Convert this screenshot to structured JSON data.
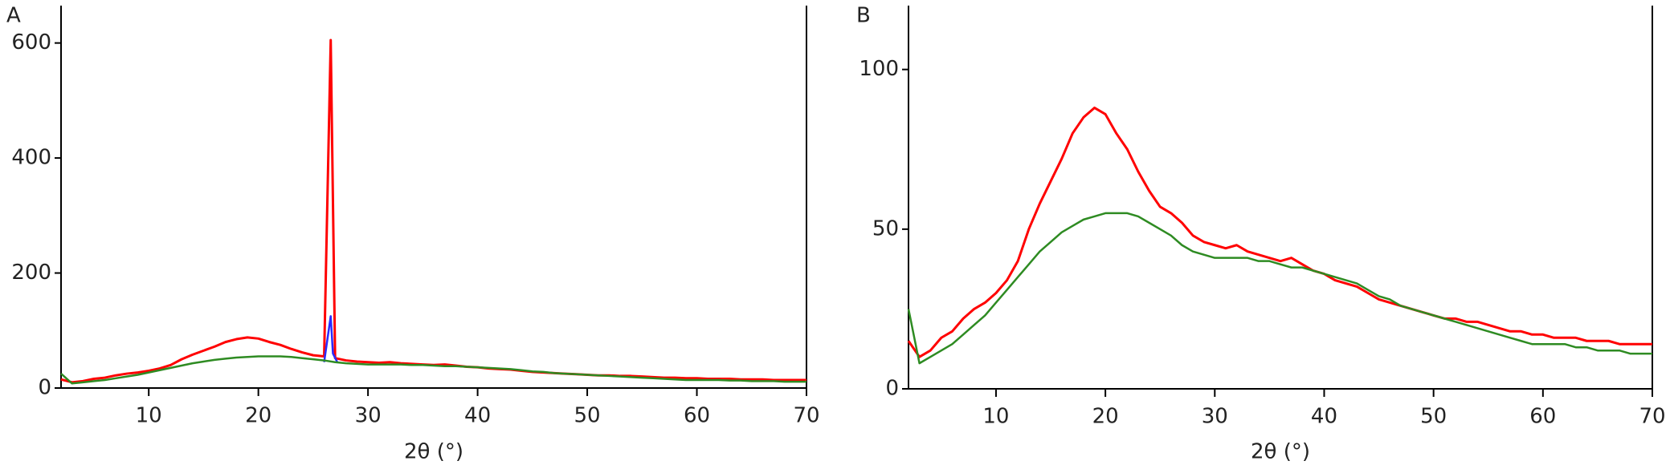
{
  "chart_data": [
    {
      "type": "line",
      "label": "A",
      "x_label": "2θ (°)",
      "xlim": [
        2,
        70
      ],
      "ylim": [
        0,
        665
      ],
      "xticks": [
        10,
        20,
        30,
        40,
        50,
        60,
        70
      ],
      "yticks": [
        0,
        200,
        400,
        600
      ],
      "series": [
        {
          "color": "#ff0000",
          "x": [
            2,
            3,
            4,
            5,
            6,
            7,
            8,
            9,
            10,
            11,
            12,
            13,
            14,
            15,
            16,
            17,
            18,
            19,
            20,
            21,
            22,
            23,
            24,
            25,
            26,
            26.6,
            27,
            28,
            29,
            30,
            31,
            32,
            33,
            34,
            35,
            36,
            37,
            38,
            39,
            40,
            41,
            42,
            43,
            44,
            45,
            46,
            47,
            48,
            49,
            50,
            51,
            52,
            53,
            54,
            55,
            56,
            57,
            58,
            59,
            60,
            61,
            62,
            63,
            64,
            65,
            66,
            67,
            68,
            69,
            70
          ],
          "values": [
            15,
            10,
            12,
            16,
            18,
            22,
            25,
            27,
            30,
            34,
            40,
            50,
            58,
            65,
            72,
            80,
            85,
            88,
            86,
            80,
            75,
            68,
            62,
            57,
            55,
            605,
            52,
            48,
            46,
            45,
            44,
            45,
            43,
            42,
            41,
            40,
            41,
            39,
            37,
            36,
            34,
            33,
            32,
            30,
            28,
            27,
            26,
            25,
            24,
            23,
            22,
            22,
            21,
            21,
            20,
            19,
            18,
            18,
            17,
            17,
            16,
            16,
            16,
            15,
            15,
            15,
            14,
            14,
            14,
            14
          ]
        },
        {
          "color": "#2a2aff",
          "x": [
            26,
            26.6,
            26.8,
            27.2
          ],
          "values": [
            45,
            125,
            60,
            45
          ]
        },
        {
          "color": "#2e8b22",
          "x": [
            2,
            3,
            4,
            5,
            6,
            7,
            8,
            9,
            10,
            11,
            12,
            13,
            14,
            15,
            16,
            17,
            18,
            19,
            20,
            21,
            22,
            23,
            24,
            25,
            26,
            27,
            28,
            29,
            30,
            31,
            32,
            33,
            34,
            35,
            36,
            37,
            38,
            39,
            40,
            41,
            42,
            43,
            44,
            45,
            46,
            47,
            48,
            49,
            50,
            51,
            52,
            53,
            54,
            55,
            56,
            57,
            58,
            59,
            60,
            61,
            62,
            63,
            64,
            65,
            66,
            67,
            68,
            69,
            70
          ],
          "values": [
            25,
            8,
            10,
            12,
            14,
            17,
            20,
            23,
            27,
            31,
            35,
            39,
            43,
            46,
            49,
            51,
            53,
            54,
            55,
            55,
            55,
            54,
            52,
            50,
            48,
            45,
            43,
            42,
            41,
            41,
            41,
            41,
            40,
            40,
            39,
            38,
            38,
            37,
            36,
            35,
            34,
            33,
            31,
            29,
            28,
            26,
            25,
            24,
            23,
            22,
            21,
            20,
            19,
            18,
            17,
            16,
            15,
            14,
            14,
            14,
            14,
            13,
            13,
            12,
            12,
            12,
            11,
            11,
            11
          ]
        }
      ]
    },
    {
      "type": "line",
      "label": "B",
      "x_label": "2θ (°)",
      "xlim": [
        2,
        70
      ],
      "ylim": [
        0,
        120
      ],
      "xticks": [
        10,
        20,
        30,
        40,
        50,
        60,
        70
      ],
      "yticks": [
        0,
        50,
        100
      ],
      "series": [
        {
          "color": "#ff0000",
          "x": [
            2,
            3,
            4,
            5,
            6,
            7,
            8,
            9,
            10,
            11,
            12,
            13,
            14,
            15,
            16,
            17,
            18,
            19,
            20,
            21,
            22,
            23,
            24,
            25,
            26,
            27,
            28,
            29,
            30,
            31,
            32,
            33,
            34,
            35,
            36,
            37,
            38,
            39,
            40,
            41,
            42,
            43,
            44,
            45,
            46,
            47,
            48,
            49,
            50,
            51,
            52,
            53,
            54,
            55,
            56,
            57,
            58,
            59,
            60,
            61,
            62,
            63,
            64,
            65,
            66,
            67,
            68,
            69,
            70
          ],
          "values": [
            15,
            10,
            12,
            16,
            18,
            22,
            25,
            27,
            30,
            34,
            40,
            50,
            58,
            65,
            72,
            80,
            85,
            88,
            86,
            80,
            75,
            68,
            62,
            57,
            55,
            52,
            48,
            46,
            45,
            44,
            45,
            43,
            42,
            41,
            40,
            41,
            39,
            37,
            36,
            34,
            33,
            32,
            30,
            28,
            27,
            26,
            25,
            24,
            23,
            22,
            22,
            21,
            21,
            20,
            19,
            18,
            18,
            17,
            17,
            16,
            16,
            16,
            15,
            15,
            15,
            14,
            14,
            14,
            14
          ]
        },
        {
          "color": "#2e8b22",
          "x": [
            2,
            3,
            4,
            5,
            6,
            7,
            8,
            9,
            10,
            11,
            12,
            13,
            14,
            15,
            16,
            17,
            18,
            19,
            20,
            21,
            22,
            23,
            24,
            25,
            26,
            27,
            28,
            29,
            30,
            31,
            32,
            33,
            34,
            35,
            36,
            37,
            38,
            39,
            40,
            41,
            42,
            43,
            44,
            45,
            46,
            47,
            48,
            49,
            50,
            51,
            52,
            53,
            54,
            55,
            56,
            57,
            58,
            59,
            60,
            61,
            62,
            63,
            64,
            65,
            66,
            67,
            68,
            69,
            70
          ],
          "values": [
            25,
            8,
            10,
            12,
            14,
            17,
            20,
            23,
            27,
            31,
            35,
            39,
            43,
            46,
            49,
            51,
            53,
            54,
            55,
            55,
            55,
            54,
            52,
            50,
            48,
            45,
            43,
            42,
            41,
            41,
            41,
            41,
            40,
            40,
            39,
            38,
            38,
            37,
            36,
            35,
            34,
            33,
            31,
            29,
            28,
            26,
            25,
            24,
            23,
            22,
            21,
            20,
            19,
            18,
            17,
            16,
            15,
            14,
            14,
            14,
            14,
            13,
            13,
            12,
            12,
            12,
            11,
            11,
            11
          ]
        }
      ]
    }
  ]
}
